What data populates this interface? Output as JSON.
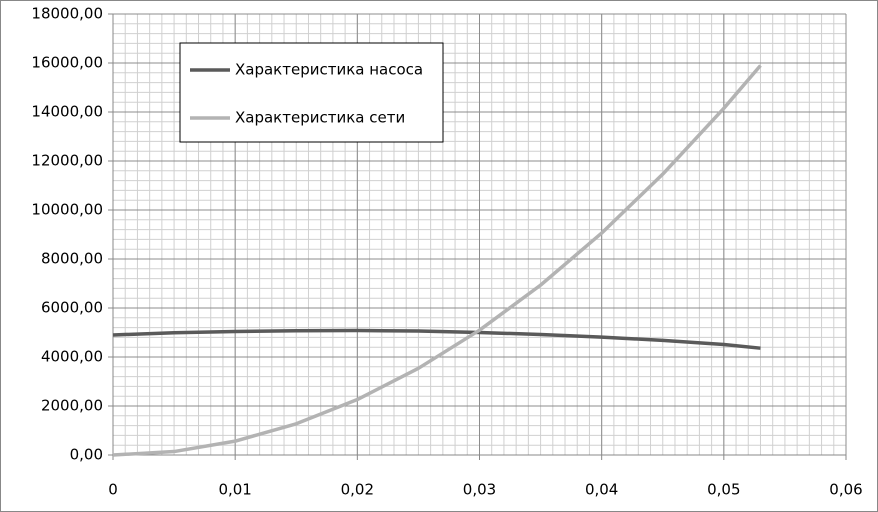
{
  "chart_data": {
    "type": "line",
    "x": [
      0,
      0.005,
      0.01,
      0.015,
      0.02,
      0.025,
      0.03,
      0.035,
      0.04,
      0.045,
      0.05,
      0.053
    ],
    "series": [
      {
        "name": "Характеристика насоса",
        "color": "#5a5a5a",
        "values": [
          4900,
          4990,
          5040,
          5070,
          5080,
          5060,
          5000,
          4920,
          4810,
          4680,
          4510,
          4360
        ]
      },
      {
        "name": "Характеристика сети",
        "color": "#b3b3b3",
        "values": [
          0,
          141,
          566,
          1274,
          2264,
          3538,
          5094,
          6934,
          9057,
          11463,
          14150,
          15898
        ]
      }
    ],
    "xlim": [
      0,
      0.06
    ],
    "xticks": [
      0,
      {
        "value": 0.01,
        "label": "0,01"
      },
      {
        "value": 0.02,
        "label": "0,02"
      },
      {
        "value": 0.03,
        "label": "0,03"
      },
      {
        "value": 0.04,
        "label": "0,04"
      },
      {
        "value": 0.05,
        "label": "0,05"
      },
      {
        "value": 0.06,
        "label": "0,06"
      }
    ],
    "ylim": [
      0,
      18000
    ],
    "yticks": [
      {
        "value": 0,
        "label": "0,00"
      },
      {
        "value": 2000,
        "label": "2000,00"
      },
      {
        "value": 4000,
        "label": "4000,00"
      },
      {
        "value": 6000,
        "label": "6000,00"
      },
      {
        "value": 8000,
        "label": "8000,00"
      },
      {
        "value": 10000,
        "label": "10000,00"
      },
      {
        "value": 12000,
        "label": "12000,00"
      },
      {
        "value": 14000,
        "label": "14000,00"
      },
      {
        "value": 16000,
        "label": "16000,00"
      },
      {
        "value": 18000,
        "label": "18000,00"
      }
    ],
    "grid": true,
    "minor_grid": {
      "x_step": 0.001,
      "y_step": 400
    },
    "legend": "upper-left"
  }
}
